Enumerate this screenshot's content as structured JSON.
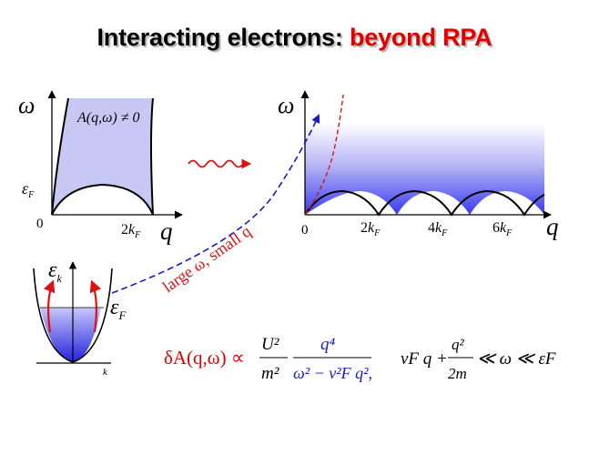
{
  "title": {
    "part1": "Interacting electrons: ",
    "part2": "beyond RPA"
  },
  "colors": {
    "title_accent": "#e00000",
    "continuum_blue": "#3a3aee",
    "arrow_red": "#dd1111",
    "arrow_blue": "#1a1acc",
    "formula_red": "#e00000",
    "formula_blue": "#1a1acc"
  },
  "left_plot": {
    "y_axis": "ω",
    "x_axis": "q",
    "origin": "0",
    "tick_2kF": {
      "coef": "2",
      "k": "k",
      "sub": "F"
    },
    "epsF": {
      "e": "ε",
      "sub": "F"
    },
    "region_label": "A(q,ω) ≠ 0"
  },
  "right_plot": {
    "y_axis": "ω",
    "x_axis": "q",
    "origin": "0",
    "ticks": [
      {
        "coef": "2",
        "k": "k",
        "sub": "F"
      },
      {
        "coef": "4",
        "k": "k",
        "sub": "F"
      },
      {
        "coef": "6",
        "k": "k",
        "sub": "F"
      }
    ]
  },
  "dispersion": {
    "y_label": "ε",
    "y_sub": "k",
    "x_label": "k",
    "fermi": "ε",
    "fermi_sub": "F"
  },
  "arrow_label": "large ω, small q",
  "formula": {
    "lhs": "δA(q,ω) ∝",
    "num1": "U²",
    "den1": "m²",
    "num2": "q⁴",
    "den2": "ω² − v²F q²,",
    "cond": "vF q +",
    "cond_num": "q²",
    "cond_den": "2m",
    "cond_tail": "≪ ω ≪ εF"
  }
}
